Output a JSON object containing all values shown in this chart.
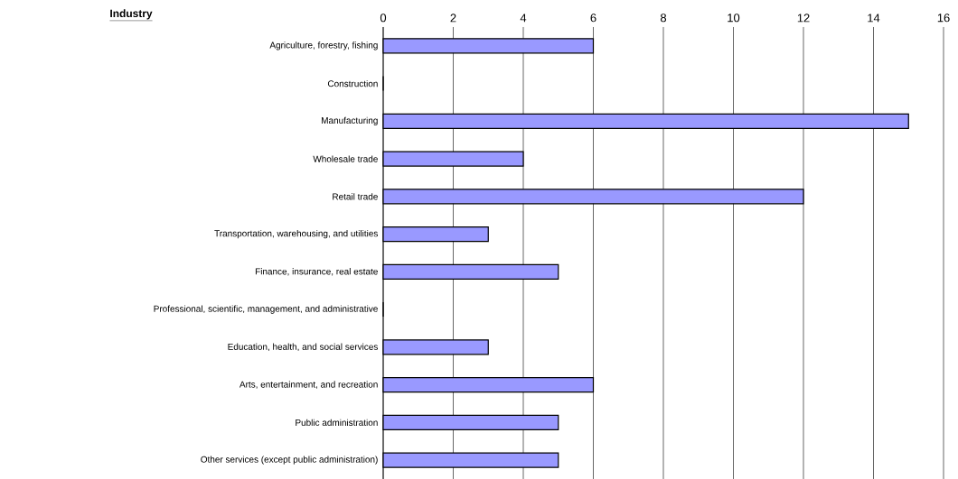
{
  "chart_data": {
    "type": "bar",
    "orientation": "horizontal",
    "ylabel": "Industry",
    "categories": [
      "Agriculture, forestry, fishing",
      "Construction",
      "Manufacturing",
      "Wholesale trade",
      "Retail trade",
      "Transportation, warehousing, and utilities",
      "Finance, insurance, real estate",
      "Professional, scientific, management, and administrative",
      "Education, health, and social services",
      "Arts, entertainment, and recreation",
      "Public administration",
      "Other services (except public administration)"
    ],
    "values": [
      6,
      0,
      15,
      4,
      12,
      3,
      5,
      0,
      3,
      6,
      5,
      5
    ],
    "color": "#9999ff",
    "xlim": [
      0,
      16
    ],
    "xticks": [
      0,
      2,
      4,
      6,
      8,
      10,
      12,
      14,
      16
    ],
    "grid": "x"
  }
}
